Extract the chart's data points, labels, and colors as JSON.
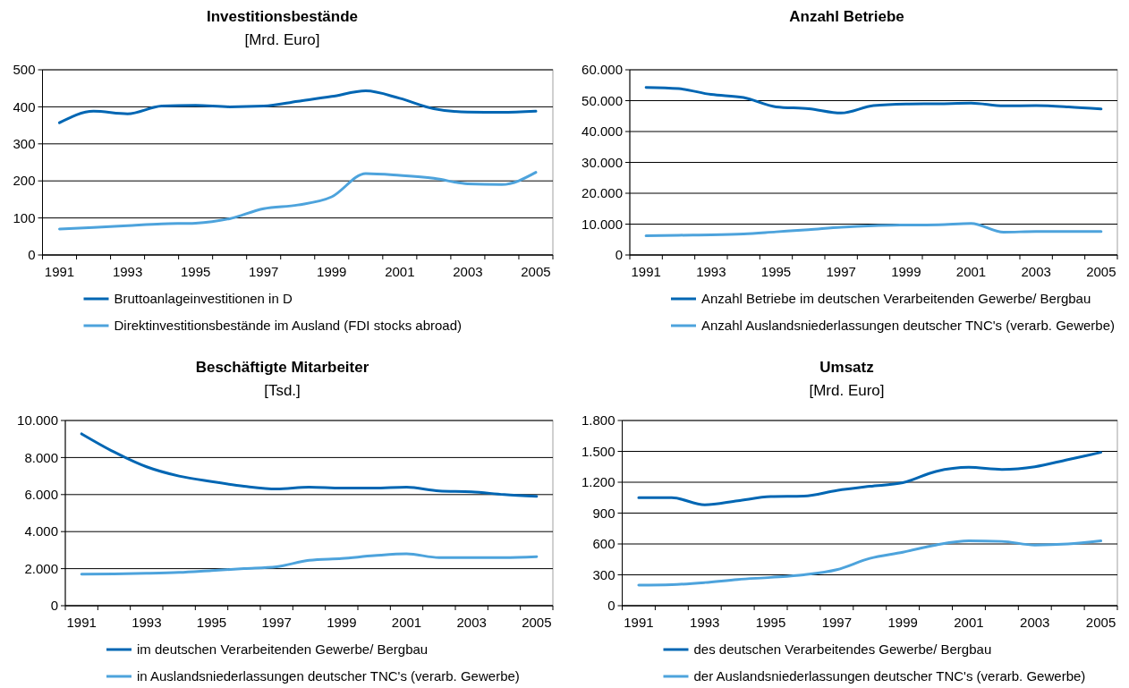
{
  "chart_data": [
    {
      "type": "line",
      "title": "Investitionsbestände",
      "subtitle": "[Mrd. Euro]",
      "categories": [
        "1991",
        null,
        "1993",
        null,
        "1995",
        null,
        "1997",
        null,
        "1999",
        null,
        "2001",
        null,
        "2003",
        null,
        "2005"
      ],
      "ylim": [
        0,
        500
      ],
      "yticks": [
        0,
        100,
        200,
        300,
        400,
        500
      ],
      "grid": "y",
      "legend": "bottom",
      "marker": "none",
      "series": [
        {
          "name": "Bruttoanlageinvestitionen in D",
          "color": "#0066b3",
          "values": [
            357,
            388,
            381,
            402,
            404,
            400,
            402,
            415,
            428,
            443,
            423,
            395,
            386,
            385,
            388
          ]
        },
        {
          "name": "Direktinvestitionsbestände im Ausland (FDI stocks abroad)",
          "color": "#4da3dc",
          "values": [
            70,
            74,
            79,
            84,
            86,
            98,
            125,
            135,
            157,
            220,
            215,
            207,
            192,
            190,
            223
          ]
        }
      ]
    },
    {
      "type": "line",
      "title": "Anzahl Betriebe",
      "categories": [
        "1991",
        null,
        "1993",
        null,
        "1995",
        null,
        "1997",
        null,
        "1999",
        null,
        "2001",
        null,
        "2003",
        null,
        "2005"
      ],
      "ylim": [
        0,
        60000
      ],
      "yticks": [
        {
          "value": 0,
          "label": "0"
        },
        {
          "value": 10000,
          "label": "10.000"
        },
        {
          "value": 20000,
          "label": "20.000"
        },
        {
          "value": 30000,
          "label": "30.000"
        },
        {
          "value": 40000,
          "label": "40.000"
        },
        {
          "value": 50000,
          "label": "50.000"
        },
        {
          "value": 60000,
          "label": "60.000"
        }
      ],
      "grid": "y",
      "legend": "bottom",
      "marker": "none",
      "series": [
        {
          "name": "Anzahl Betriebe im deutschen Verarbeitenden Gewerbe/ Bergbau",
          "color": "#0066b3",
          "values": [
            54300,
            53900,
            52000,
            51000,
            48000,
            47400,
            46000,
            48400,
            48900,
            49000,
            49200,
            48300,
            48400,
            48000,
            47300
          ]
        },
        {
          "name": "Anzahl Auslandsniederlassungen deutscher TNC's (verarb. Gewerbe)",
          "color": "#4da3dc",
          "values": [
            6200,
            6400,
            6500,
            6800,
            7500,
            8200,
            9000,
            9500,
            9700,
            9800,
            10200,
            7400,
            7600,
            7600,
            7600
          ]
        }
      ]
    },
    {
      "type": "line",
      "title": "Beschäftigte Mitarbeiter",
      "subtitle": "[Tsd.]",
      "categories": [
        "1991",
        null,
        "1993",
        null,
        "1995",
        null,
        "1997",
        null,
        "1999",
        null,
        "2001",
        null,
        "2003",
        null,
        "2005"
      ],
      "ylim": [
        0,
        10000
      ],
      "yticks": [
        {
          "value": 0,
          "label": "0"
        },
        {
          "value": 2000,
          "label": "2.000"
        },
        {
          "value": 4000,
          "label": "4.000"
        },
        {
          "value": 6000,
          "label": "6.000"
        },
        {
          "value": 8000,
          "label": "8.000"
        },
        {
          "value": 10000,
          "label": "10.000"
        }
      ],
      "grid": "y",
      "legend": "bottom",
      "marker": "none",
      "series": [
        {
          "name": "im deutschen Verarbeitenden Gewerbe/ Bergbau",
          "color": "#0066b3",
          "values": [
            9280,
            8300,
            7500,
            7000,
            6700,
            6450,
            6300,
            6400,
            6350,
            6350,
            6400,
            6200,
            6150,
            6000,
            5900
          ]
        },
        {
          "name": "in Auslandsniederlassungen deutscher TNC's (verarb. Gewerbe)",
          "color": "#4da3dc",
          "values": [
            1700,
            1720,
            1750,
            1800,
            1900,
            2000,
            2100,
            2450,
            2550,
            2700,
            2800,
            2600,
            2600,
            2600,
            2650
          ]
        }
      ]
    },
    {
      "type": "line",
      "title": "Umsatz",
      "subtitle": "[Mrd. Euro]",
      "categories": [
        "1991",
        null,
        "1993",
        null,
        "1995",
        null,
        "1997",
        null,
        "1999",
        null,
        "2001",
        null,
        "2003",
        null,
        "2005"
      ],
      "ylim": [
        0,
        1800
      ],
      "yticks": [
        {
          "value": 0,
          "label": "0"
        },
        {
          "value": 300,
          "label": "300"
        },
        {
          "value": 600,
          "label": "600"
        },
        {
          "value": 900,
          "label": "900"
        },
        {
          "value": 1200,
          "label": "1.200"
        },
        {
          "value": 1500,
          "label": "1.500"
        },
        {
          "value": 1800,
          "label": "1.800"
        }
      ],
      "grid": "y",
      "legend": "bottom",
      "marker": "none",
      "series": [
        {
          "name": "des deutschen Verarbeitendes Gewerbe/ Bergbau",
          "color": "#0066b3",
          "values": [
            1050,
            1050,
            980,
            1020,
            1060,
            1065,
            1120,
            1160,
            1195,
            1305,
            1345,
            1325,
            1350,
            1420,
            1490
          ]
        },
        {
          "name": "der Auslandsniederlassungen deutscher TNC's (verarb. Gewerbe)",
          "color": "#4da3dc",
          "values": [
            200,
            205,
            225,
            255,
            275,
            300,
            350,
            460,
            520,
            590,
            630,
            625,
            590,
            600,
            630
          ]
        }
      ]
    }
  ]
}
